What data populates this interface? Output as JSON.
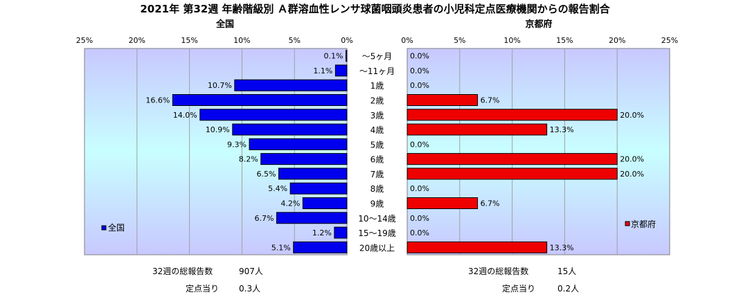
{
  "title": "2021年 第32週 年齢階級別 Ａ群溶血性レンサ球菌咽頭炎患者の小児科定点医療機関からの報告割合",
  "chart_data": {
    "type": "bar",
    "orientation": "horizontal-butterfly",
    "categories": [
      "～5ヶ月",
      "～11ヶ月",
      "1歳",
      "2歳",
      "3歳",
      "4歳",
      "5歳",
      "6歳",
      "7歳",
      "8歳",
      "9歳",
      "10～14歳",
      "15～19歳",
      "20歳以上"
    ],
    "xlim": [
      0,
      25
    ],
    "ticks": [
      0,
      5,
      10,
      15,
      20,
      25
    ],
    "tick_suffix": "%",
    "grid": true,
    "series": [
      {
        "name": "全国",
        "panel_label": "全国",
        "side": "left",
        "color": "#0000ee",
        "legend_position": "bottom-left",
        "values": [
          0.1,
          1.1,
          10.7,
          16.6,
          14.0,
          10.9,
          9.3,
          8.2,
          6.5,
          5.4,
          4.2,
          6.7,
          1.2,
          5.1
        ]
      },
      {
        "name": "京都府",
        "panel_label": "京都府",
        "side": "right",
        "color": "#ee0000",
        "legend_position": "bottom-right",
        "values": [
          0.0,
          0.0,
          0.0,
          6.7,
          20.0,
          13.3,
          0.0,
          20.0,
          20.0,
          0.0,
          6.7,
          0.0,
          0.0,
          13.3
        ]
      }
    ]
  },
  "footer": {
    "national": {
      "total_label": "32週の総報告数",
      "total_value": "907人",
      "per_label": "定点当り",
      "per_value": "0.3人"
    },
    "kyoto": {
      "total_label": "32週の総報告数",
      "total_value": "15人",
      "per_label": "定点当り",
      "per_value": "0.2人"
    }
  }
}
